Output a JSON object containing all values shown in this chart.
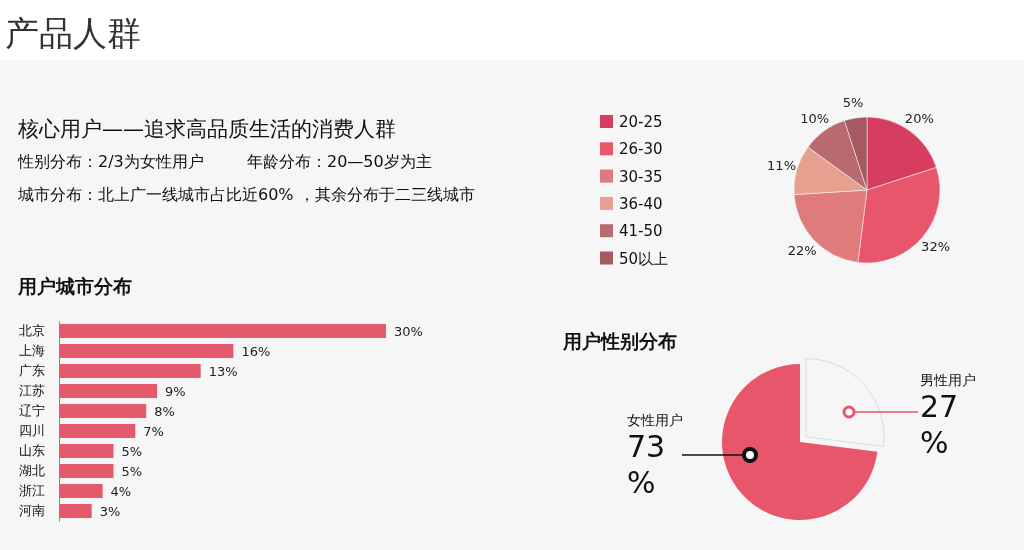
{
  "chart_data": [
    {
      "type": "other",
      "title": "产品人群",
      "subtitle": "核心用户——追求高品质生活的消费人群",
      "annotations": [
        "性别分布：2/3为女性用户",
        "年龄分布：20—50岁为主",
        "城市分布：北上广一线城市占比近60% ，其余分布于二三线城市"
      ]
    },
    {
      "type": "pie",
      "categories": [
        "20-25",
        "26-30",
        "30-35",
        "36-40",
        "41-50",
        "50以上"
      ],
      "values": [
        20,
        32,
        22,
        11,
        10,
        5
      ],
      "colors": [
        "#d63d5e",
        "#e8566c",
        "#e07b7b",
        "#e6a08f",
        "#b86a6e",
        "#a45a60"
      ],
      "legend": "left",
      "value_labels": [
        "20%",
        "32%",
        "22%",
        "11%",
        "10%",
        "5%"
      ]
    },
    {
      "type": "bar",
      "title": "用户城市分布",
      "orientation": "horizontal",
      "categories": [
        "北京",
        "上海",
        "广东",
        "江苏",
        "辽宁",
        "四川",
        "山东",
        "湖北",
        "浙江",
        "河南"
      ],
      "values": [
        30,
        16,
        13,
        9,
        8,
        7,
        5,
        5,
        4,
        3
      ],
      "color": "#e35a6c",
      "tick_labels": "y",
      "value_labels": [
        "30%",
        "16%",
        "13%",
        "9%",
        "8%",
        "7%",
        "5%",
        "5%",
        "4%",
        "3%"
      ]
    },
    {
      "type": "pie",
      "title": "用户性别分布",
      "categories": [
        "男性用户",
        "女性用户"
      ],
      "values": [
        27,
        73
      ],
      "colors": [
        "#f6f6f6",
        "#e8566c"
      ],
      "value_labels": [
        "27%",
        "73%"
      ]
    }
  ]
}
